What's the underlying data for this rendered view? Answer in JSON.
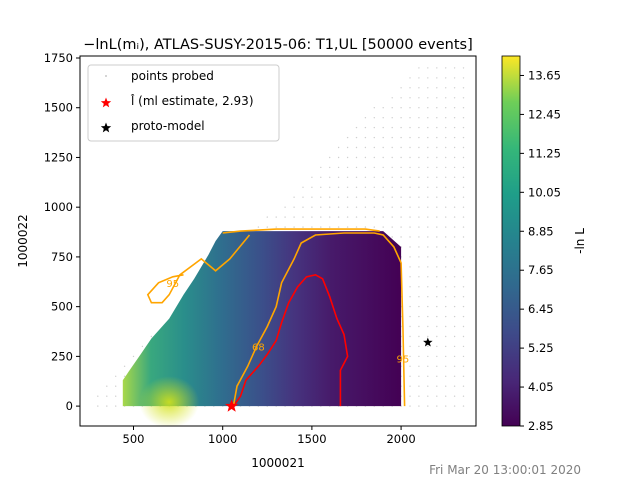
{
  "chart_data": {
    "type": "heatmap",
    "title": "−lnL(mᵢ), ATLAS-SUSY-2015-06: T1,UL [50000 events]",
    "xlabel": "1000021",
    "ylabel": "1000022",
    "xlim": [
      200,
      2420
    ],
    "ylim": [
      -100,
      1760
    ],
    "xticks": [
      500,
      1000,
      1500,
      2000
    ],
    "yticks": [
      0,
      250,
      500,
      750,
      1000,
      1250,
      1500,
      1750
    ],
    "colorbar": {
      "label": "-ln L",
      "min": 2.85,
      "max": 14.25,
      "ticks": [
        2.85,
        4.05,
        5.25,
        6.45,
        7.65,
        8.85,
        10.05,
        11.25,
        12.45,
        13.65
      ]
    },
    "legend": {
      "placement": "upper-left",
      "entries": [
        {
          "label": "points probed",
          "marker": "dot",
          "color": "#c8c8c8"
        },
        {
          "label": "l̂ (ml estimate, 2.93)",
          "marker": "star",
          "color": "#ff0000"
        },
        {
          "label": "proto-model",
          "marker": "star",
          "color": "#000000"
        }
      ]
    },
    "ml_estimate": {
      "x": 1050,
      "y": 0,
      "value": 2.93
    },
    "proto_model": {
      "x": 2150,
      "y": 320
    },
    "contours": [
      {
        "level": "68",
        "color": "#ff0000",
        "points": [
          [
            1060,
            0
          ],
          [
            1100,
            50
          ],
          [
            1130,
            130
          ],
          [
            1200,
            200
          ],
          [
            1250,
            260
          ],
          [
            1300,
            330
          ],
          [
            1330,
            420
          ],
          [
            1370,
            520
          ],
          [
            1420,
            600
          ],
          [
            1470,
            650
          ],
          [
            1520,
            660
          ],
          [
            1560,
            640
          ],
          [
            1600,
            550
          ],
          [
            1640,
            440
          ],
          [
            1680,
            360
          ],
          [
            1700,
            250
          ],
          [
            1660,
            180
          ],
          [
            1660,
            0
          ]
        ]
      },
      {
        "level": "95",
        "color": "#ffa500",
        "points": [
          [
            1060,
            0
          ],
          [
            1080,
            100
          ],
          [
            1140,
            200
          ],
          [
            1190,
            300
          ],
          [
            1250,
            400
          ],
          [
            1300,
            500
          ],
          [
            1330,
            620
          ],
          [
            1400,
            740
          ],
          [
            1440,
            820
          ],
          [
            1520,
            860
          ],
          [
            1680,
            870
          ],
          [
            1850,
            870
          ],
          [
            1900,
            860
          ],
          [
            1960,
            800
          ],
          [
            2000,
            720
          ],
          [
            2010,
            400
          ],
          [
            2020,
            0
          ]
        ]
      },
      {
        "level": "95",
        "color": "#ffa500",
        "points": [
          [
            1000,
            870
          ],
          [
            1100,
            880
          ],
          [
            1300,
            890
          ],
          [
            1700,
            890
          ],
          [
            1800,
            890
          ],
          [
            1880,
            880
          ]
        ]
      },
      {
        "level": "95",
        "color": "#ffa500",
        "points": [
          [
            1150,
            860
          ],
          [
            1040,
            740
          ],
          [
            960,
            680
          ],
          [
            880,
            740
          ],
          [
            760,
            660
          ],
          [
            700,
            560
          ],
          [
            660,
            520
          ],
          [
            600,
            520
          ],
          [
            580,
            560
          ],
          [
            640,
            620
          ],
          [
            720,
            650
          ],
          [
            780,
            660
          ]
        ]
      }
    ],
    "contour_labels": [
      {
        "text": "95",
        "x": 720,
        "y": 600
      },
      {
        "text": "95",
        "x": 2010,
        "y": 220
      },
      {
        "text": "68",
        "x": 1200,
        "y": 280
      }
    ],
    "timestamp": "Fri Mar 20 13:00:01 2020"
  }
}
